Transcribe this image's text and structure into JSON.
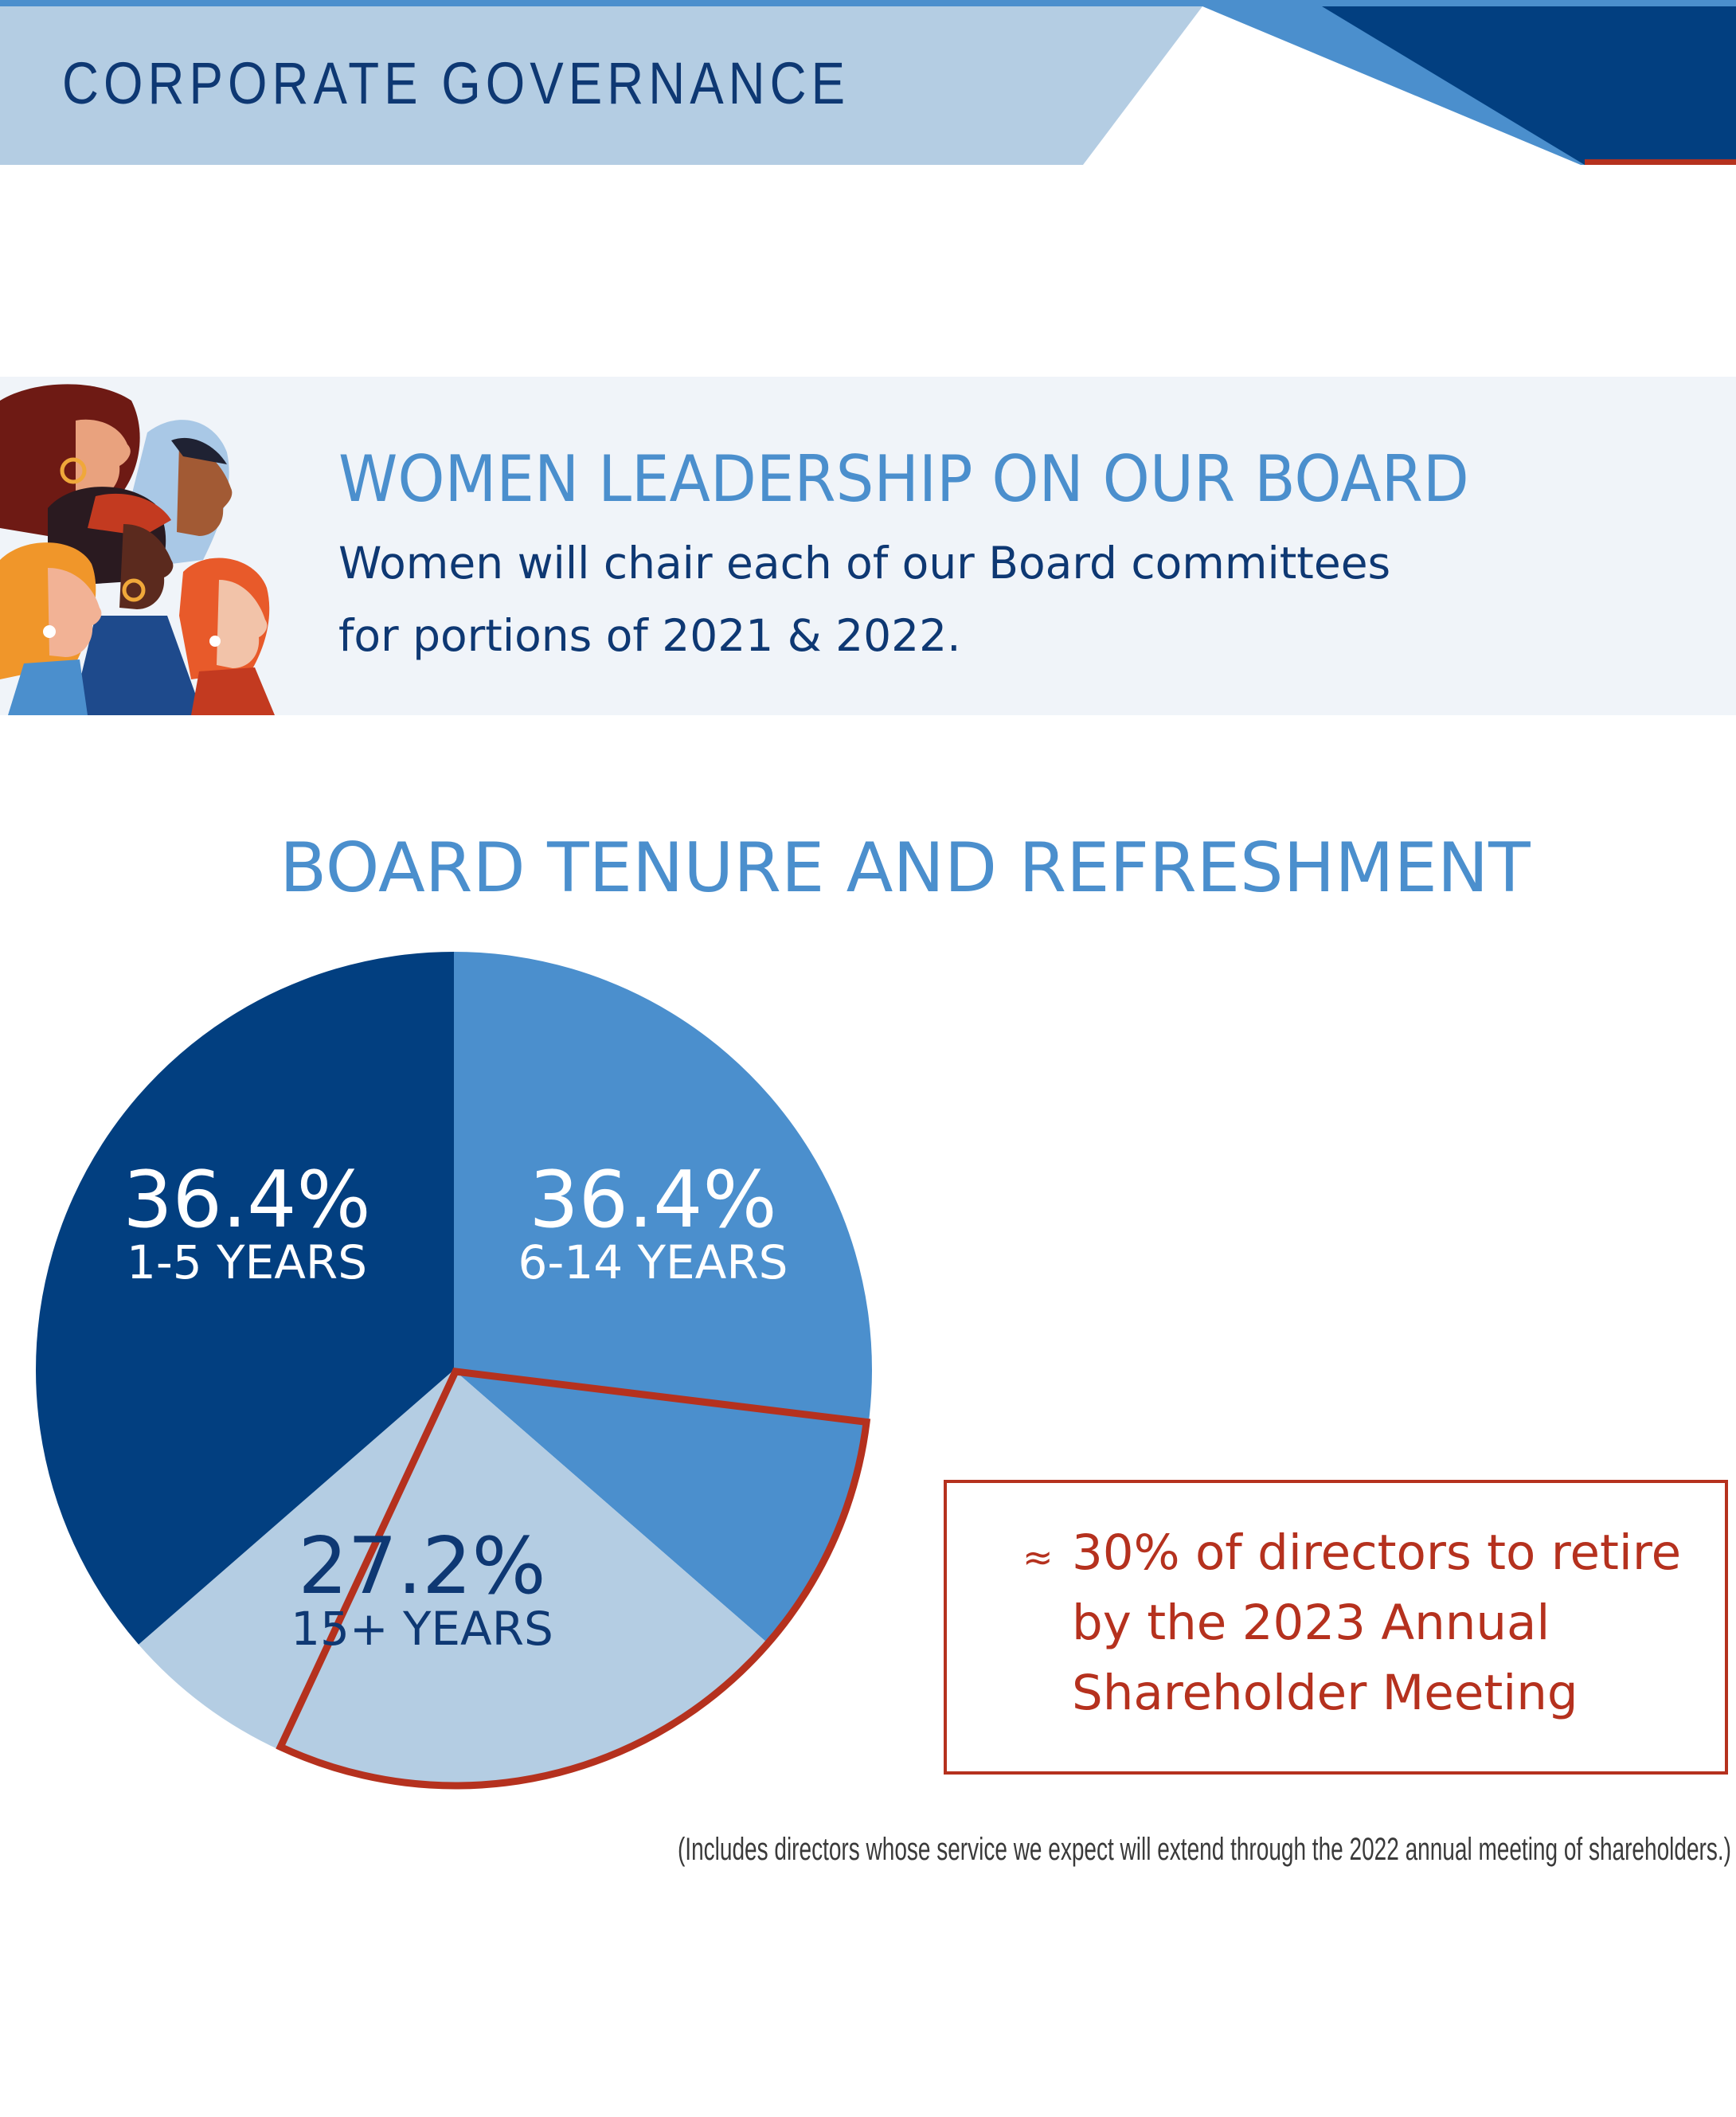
{
  "header": {
    "section_title": "CORPORATE GOVERNANCE",
    "colors": {
      "light": "#b4cde3",
      "mid": "#4b8fcd",
      "dark": "#023f80",
      "accent": "#b5311e"
    }
  },
  "women_banner": {
    "illustration": "women-profiles-illustration",
    "title": "WOMEN LEADERSHIP ON OUR BOARD",
    "subtitle_line1": "Women will chair each of our Board committees",
    "subtitle_line2": "for portions of 2021 & 2022."
  },
  "chart_data": {
    "type": "pie",
    "title": "BOARD TENURE AND REFRESHMENT",
    "slices": [
      {
        "label": "1-5 YEARS",
        "percent_label": "36.4%",
        "value": 36.4,
        "color": "#023f80",
        "text_color": "#ffffff"
      },
      {
        "label": "6-14 YEARS",
        "percent_label": "36.4%",
        "value": 36.4,
        "color": "#4b8fcd",
        "text_color": "#ffffff"
      },
      {
        "label": "15+ YEARS",
        "percent_label": "27.2%",
        "value": 27.2,
        "color": "#b4cde3",
        "text_color": "#0e3873"
      }
    ],
    "highlight": {
      "value": 30,
      "outline_color": "#b5311e"
    },
    "annotation": {
      "symbol": "≈",
      "lines": [
        "30% of directors to retire",
        "by the 2023 Annual",
        "Shareholder Meeting"
      ]
    }
  },
  "footnote": "(Includes directors whose service we expect will extend through the 2022 annual meeting of shareholders.)"
}
